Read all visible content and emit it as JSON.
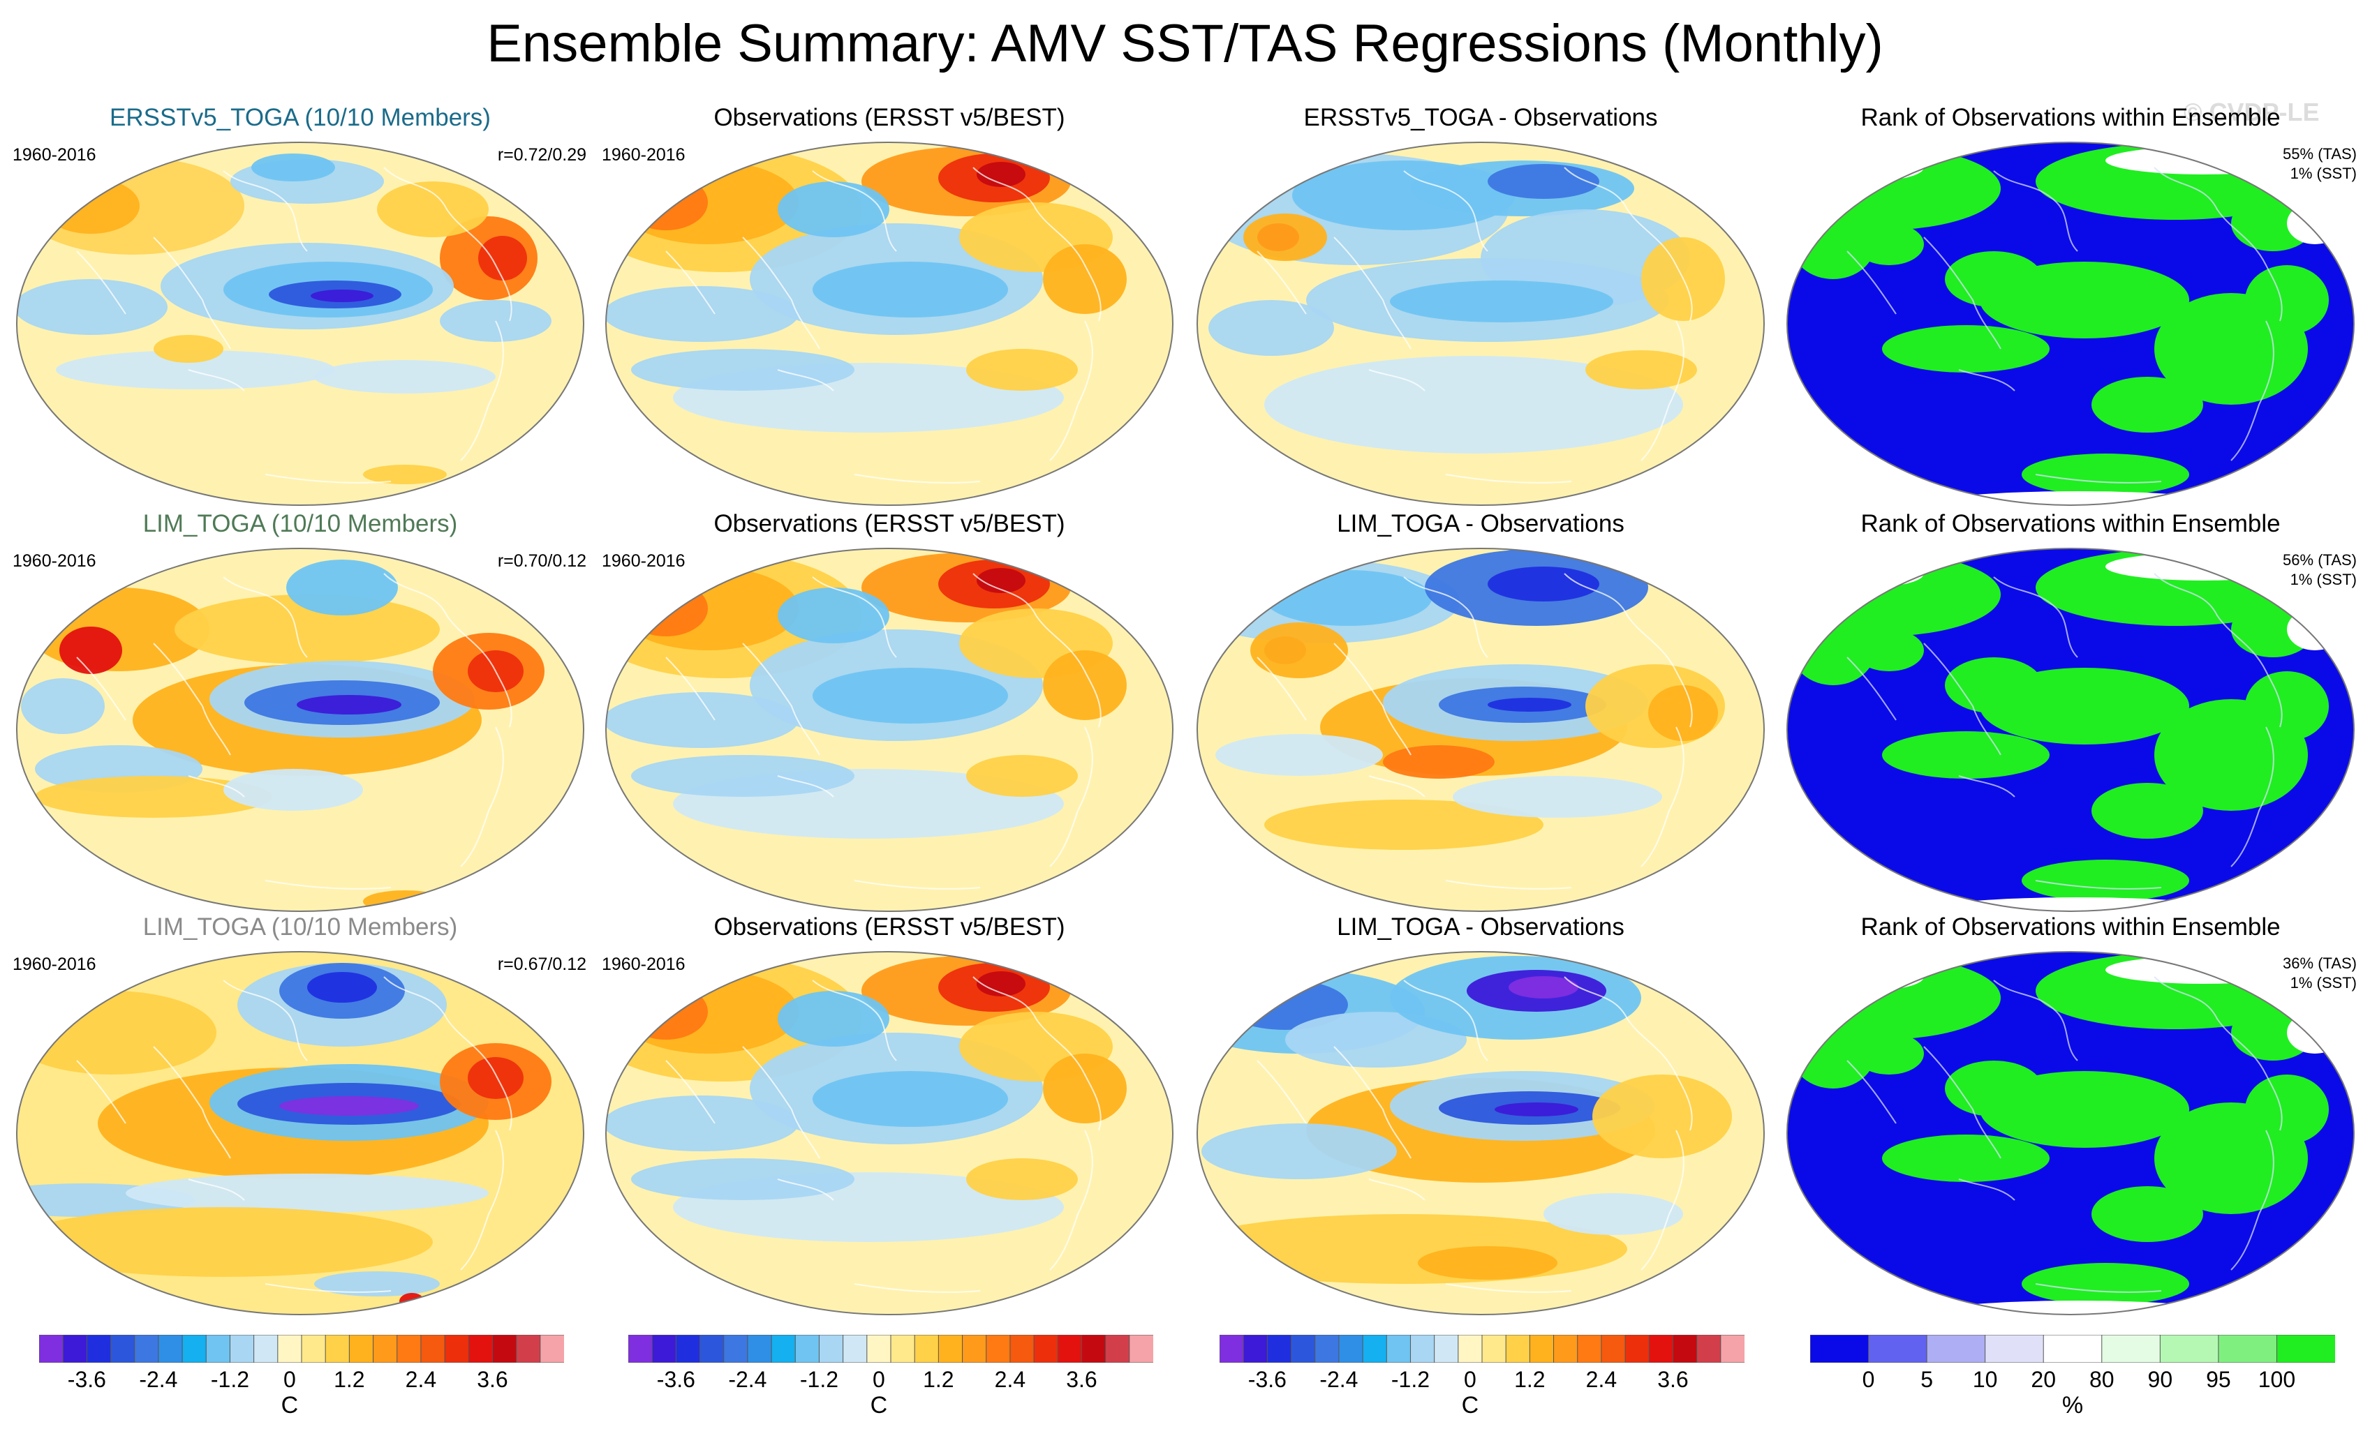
{
  "title": "Ensemble Summary: AMV SST/TAS Regressions (Monthly)",
  "watermark": "© CVDP-LE",
  "rows": [
    {
      "ensemble": {
        "title": "ERSSTv5_TOGA (10/10 Members)",
        "title_color": "#1a6b8a",
        "period": "1960-2016",
        "corr": "r=0.72/0.29",
        "scheme": "ens1"
      },
      "obs": {
        "title": "Observations (ERSST v5/BEST)",
        "period": "1960-2016",
        "scheme": "obs"
      },
      "diff": {
        "title": "ERSSTv5_TOGA - Observations",
        "scheme": "diff1"
      },
      "rank": {
        "title": "Rank of Observations within Ensemble",
        "tas": "55% (TAS)",
        "sst": "1% (SST)"
      }
    },
    {
      "ensemble": {
        "title": "LIM_TOGA (10/10 Members)",
        "title_color": "#4f7a56",
        "period": "1960-2016",
        "corr": "r=0.70/0.12",
        "scheme": "ens2"
      },
      "obs": {
        "title": "Observations (ERSST v5/BEST)",
        "period": "1960-2016",
        "scheme": "obs"
      },
      "diff": {
        "title": "LIM_TOGA - Observations",
        "scheme": "diff2"
      },
      "rank": {
        "title": "Rank of Observations within Ensemble",
        "tas": "56% (TAS)",
        "sst": "1% (SST)"
      }
    },
    {
      "ensemble": {
        "title": "LIM_TOGA (10/10 Members)",
        "title_color": "#8a8a8a",
        "period": "1960-2016",
        "corr": "r=0.67/0.12",
        "scheme": "ens3"
      },
      "obs": {
        "title": "Observations (ERSST v5/BEST)",
        "period": "1960-2016",
        "scheme": "obs"
      },
      "diff": {
        "title": "LIM_TOGA - Observations",
        "scheme": "diff3"
      },
      "rank": {
        "title": "Rank of Observations within Ensemble",
        "tas": "36% (TAS)",
        "sst": "1% (SST)"
      }
    }
  ],
  "colorbars": {
    "regression": {
      "colors": [
        "#7f2fe0",
        "#3c1ad8",
        "#1f2fe0",
        "#2c57dc",
        "#3d77e2",
        "#2f8fe6",
        "#14b0f0",
        "#6fc4f2",
        "#a8d6f3",
        "#d0e8f5",
        "#fff6c4",
        "#ffe98a",
        "#ffd148",
        "#ffb21e",
        "#ff9a1a",
        "#ff7a12",
        "#f55a0e",
        "#ee2f0c",
        "#e3120f",
        "#c40a10",
        "#d23f4a",
        "#f5a3a8"
      ],
      "tick_labels": [
        "-3.6",
        "-2.4",
        "-1.2",
        "0",
        "1.2",
        "2.4",
        "3.6"
      ],
      "tick_positions": [
        2,
        5,
        8,
        10.5,
        13,
        16,
        19
      ],
      "unit": "C"
    },
    "rank": {
      "colors": [
        "#0a0ae8",
        "#6262f0",
        "#aeaef4",
        "#e0e0f8",
        "#ffffff",
        "#e4fce4",
        "#b4f8b4",
        "#7ff07f",
        "#20ee20"
      ],
      "tick_labels": [
        "0",
        "5",
        "10",
        "20",
        "80",
        "90",
        "95",
        "100"
      ],
      "tick_positions": [
        1,
        2,
        3,
        4,
        5,
        6,
        7,
        8
      ],
      "unit": "%"
    }
  }
}
